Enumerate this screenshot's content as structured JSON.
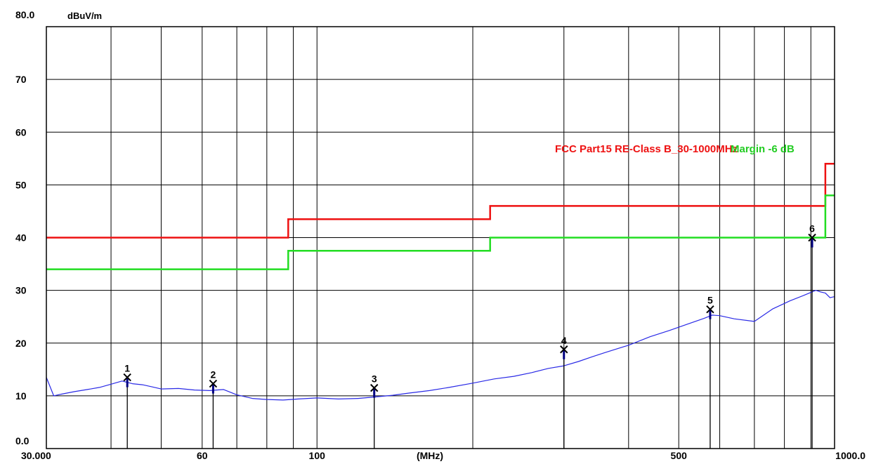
{
  "chart_data": {
    "type": "line",
    "title": "",
    "xlabel": "(MHz)",
    "ylabel": "dBuV/m",
    "x_scale": "log",
    "xlim": [
      30,
      1000
    ],
    "ylim": [
      0,
      80
    ],
    "grid": true,
    "x_tick_labels": [
      {
        "value": 30,
        "label": "30.000"
      },
      {
        "value": 60,
        "label": "60"
      },
      {
        "value": 100,
        "label": "100"
      },
      {
        "value": 500,
        "label": "500"
      },
      {
        "value": 1000,
        "label": "1000.0"
      }
    ],
    "x_minor_ticks": [
      40,
      50,
      70,
      80,
      90,
      200,
      300,
      400,
      600,
      700,
      800,
      900
    ],
    "y_tick_labels": [
      {
        "value": 0,
        "label": "0.0"
      },
      {
        "value": 10,
        "label": "10"
      },
      {
        "value": 20,
        "label": "20"
      },
      {
        "value": 30,
        "label": "30"
      },
      {
        "value": 40,
        "label": "40"
      },
      {
        "value": 50,
        "label": "50"
      },
      {
        "value": 60,
        "label": "60"
      },
      {
        "value": 70,
        "label": "70"
      },
      {
        "value": 80,
        "label": "80.0"
      }
    ],
    "legend": {
      "position": "upper-right",
      "limit_label": "FCC Part15 RE-Class B_30-1000MHz",
      "margin_label": "Margin -6 dB"
    },
    "colors": {
      "limit": "#ee1111",
      "margin": "#22dd22",
      "trace": "#2a2ae6",
      "marker_stem": "#000080",
      "grid": "#000000"
    },
    "series": [
      {
        "role": "limit",
        "x": [
          30,
          88,
          88,
          216,
          216,
          960,
          960,
          1000
        ],
        "y": [
          40,
          40,
          43.5,
          43.5,
          46,
          46,
          54,
          54
        ]
      },
      {
        "role": "margin",
        "x": [
          30,
          88,
          88,
          216,
          216,
          960,
          960,
          1000
        ],
        "y": [
          34,
          34,
          37.5,
          37.5,
          40,
          40,
          48,
          48
        ]
      },
      {
        "role": "measurement",
        "x": [
          30,
          31,
          32,
          34,
          36,
          38,
          40,
          42,
          44,
          46,
          48,
          50,
          54,
          58,
          62,
          66,
          70,
          75,
          80,
          86,
          92,
          100,
          110,
          120,
          130,
          140,
          150,
          165,
          180,
          200,
          220,
          240,
          260,
          280,
          300,
          320,
          340,
          360,
          400,
          440,
          480,
          520,
          560,
          580,
          600,
          640,
          700,
          760,
          820,
          880,
          920,
          940,
          960,
          980,
          1000
        ],
        "y": [
          13.5,
          10,
          10.3,
          10.8,
          11.2,
          11.6,
          12.2,
          12.8,
          12.3,
          12.1,
          11.7,
          11.3,
          11.4,
          11.1,
          11,
          11.2,
          10.2,
          9.5,
          9.3,
          9.2,
          9.4,
          9.6,
          9.4,
          9.5,
          9.8,
          10.1,
          10.5,
          11,
          11.6,
          12.4,
          13.2,
          13.7,
          14.4,
          15.2,
          15.7,
          16.5,
          17.4,
          18.2,
          19.6,
          21.2,
          22.4,
          23.6,
          24.7,
          25.3,
          25.2,
          24.6,
          24.1,
          26.5,
          28,
          29.2,
          30,
          29.7,
          29.5,
          28.6,
          28.8
        ]
      }
    ],
    "markers": [
      {
        "id": "1",
        "x": 43,
        "y": 13.5
      },
      {
        "id": "2",
        "x": 63,
        "y": 12.3
      },
      {
        "id": "3",
        "x": 129,
        "y": 11.5
      },
      {
        "id": "4",
        "x": 300,
        "y": 18.8
      },
      {
        "id": "5",
        "x": 575,
        "y": 26.4
      },
      {
        "id": "6",
        "x": 905,
        "y": 40
      }
    ]
  }
}
